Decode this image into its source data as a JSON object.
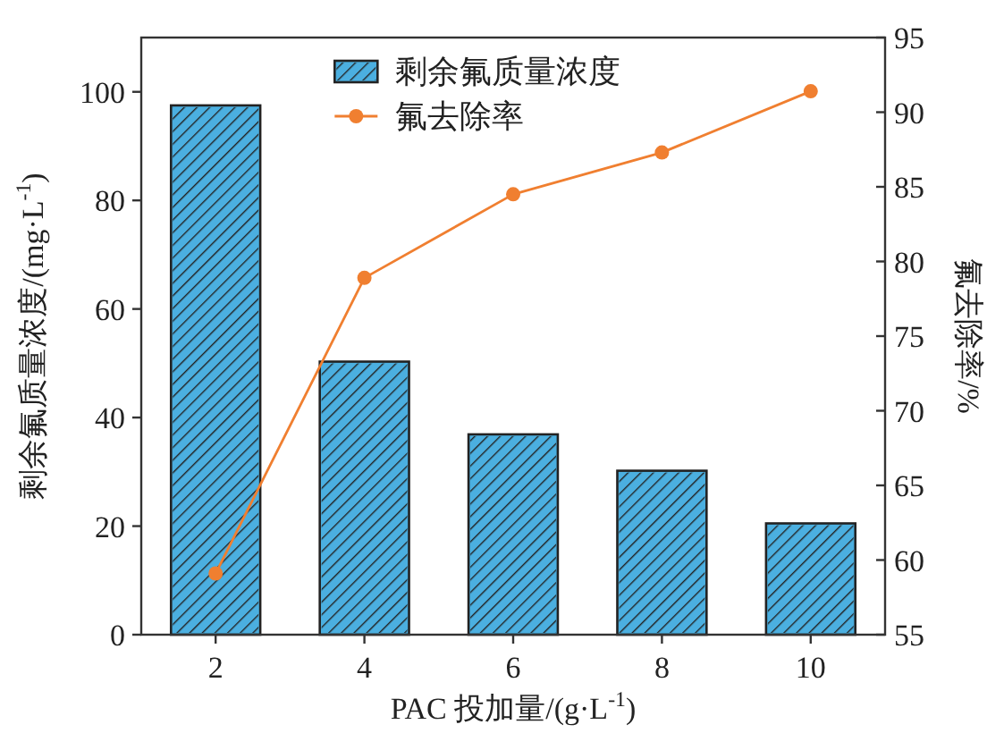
{
  "chart_data": {
    "type": "bar",
    "categories": [
      "2",
      "4",
      "6",
      "8",
      "10"
    ],
    "series": [
      {
        "name": "剩余氟质量浓度",
        "color": "#4bafe0",
        "values": [
          97.5,
          50.3,
          36.9,
          30.2,
          20.5
        ]
      },
      {
        "name": "氟去除率",
        "type": "line",
        "axis": "y2",
        "color": "#f07f30",
        "marker": "circle",
        "values": [
          59.1,
          78.9,
          84.5,
          87.3,
          91.4
        ]
      }
    ],
    "xlabel": "PAC 投加量/(g·L$^{-1}$)",
    "ylabel": "剩余氟质量浓度/(mg·L$^{-1}$)",
    "y2label": "氟去除率/%",
    "ylim": [
      0,
      110
    ],
    "yticks": [
      0,
      20,
      40,
      60,
      80,
      100
    ],
    "y2lim": [
      55,
      95
    ],
    "y2ticks": [
      55,
      60,
      65,
      70,
      75,
      80,
      85,
      90,
      95
    ],
    "legend": "top",
    "grid": false
  }
}
